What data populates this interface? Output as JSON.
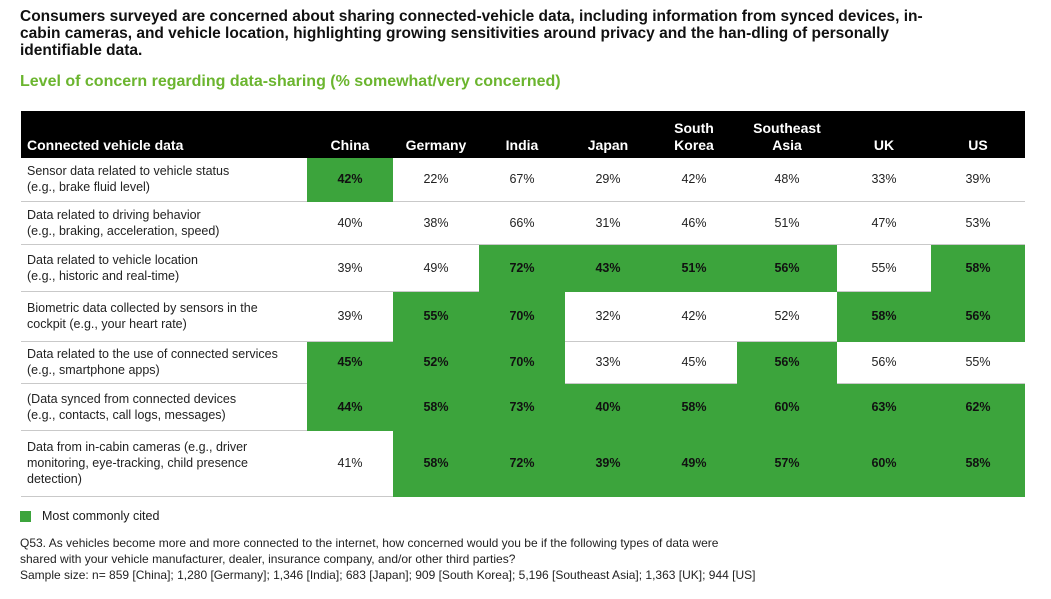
{
  "headline": "Consumers surveyed are concerned about sharing connected-vehicle data, including information from synced devices, in-cabin cameras, and vehicle location, highlighting growing sensitivities around privacy and the han-dling of personally identifiable data.",
  "chart_data": {
    "type": "table",
    "title": "Level of concern regarding data-sharing (% somewhat/very concerned)",
    "row_header": "Connected vehicle data",
    "columns": [
      "China",
      "Germany",
      "India",
      "Japan",
      "South Korea",
      "Southeast Asia",
      "UK",
      "US"
    ],
    "rows": [
      {
        "label_lines": [
          "Sensor data related to vehicle status",
          "(e.g., brake fluid level)"
        ],
        "values": [
          "42%",
          "22%",
          "67%",
          "29%",
          "42%",
          "48%",
          "33%",
          "39%"
        ],
        "most_cited": [
          true,
          false,
          false,
          false,
          false,
          false,
          false,
          false
        ]
      },
      {
        "label_lines": [
          "Data related to driving behavior",
          "(e.g., braking, acceleration, speed)"
        ],
        "values": [
          "40%",
          "38%",
          "66%",
          "31%",
          "46%",
          "51%",
          "47%",
          "53%"
        ],
        "most_cited": [
          false,
          false,
          false,
          false,
          false,
          false,
          false,
          false
        ]
      },
      {
        "label_lines": [
          "Data related to vehicle location",
          "(e.g., historic and real-time)"
        ],
        "values": [
          "39%",
          "49%",
          "72%",
          "43%",
          "51%",
          "56%",
          "55%",
          "58%"
        ],
        "most_cited": [
          false,
          false,
          true,
          true,
          true,
          true,
          false,
          true
        ]
      },
      {
        "label_lines": [
          "Biometric data collected by sensors in the",
          "cockpit (e.g., your heart rate)"
        ],
        "values": [
          "39%",
          "55%",
          "70%",
          "32%",
          "42%",
          "52%",
          "58%",
          "56%"
        ],
        "most_cited": [
          false,
          true,
          true,
          false,
          false,
          false,
          true,
          true
        ]
      },
      {
        "label_lines": [
          "Data related to the use of connected services",
          "(e.g., smartphone apps)"
        ],
        "values": [
          "45%",
          "52%",
          "70%",
          "33%",
          "45%",
          "56%",
          "56%",
          "55%"
        ],
        "most_cited": [
          true,
          true,
          true,
          false,
          false,
          true,
          false,
          false
        ]
      },
      {
        "label_lines": [
          "(Data synced from connected devices",
          "(e.g., contacts, call logs, messages)"
        ],
        "values": [
          "44%",
          "58%",
          "73%",
          "40%",
          "58%",
          "60%",
          "63%",
          "62%"
        ],
        "most_cited": [
          true,
          true,
          true,
          true,
          true,
          true,
          true,
          true
        ]
      },
      {
        "label_lines": [
          "Data from in-cabin cameras (e.g., driver",
          "monitoring, eye-tracking, child presence",
          "detection)"
        ],
        "values": [
          "41%",
          "58%",
          "72%",
          "39%",
          "49%",
          "57%",
          "60%",
          "58%"
        ],
        "most_cited": [
          false,
          true,
          true,
          true,
          true,
          true,
          true,
          true
        ]
      }
    ],
    "highlight_color": "#3ca43c",
    "legend": "Most commonly cited"
  },
  "footnote": {
    "question_lines": [
      "Q53. As vehicles become more and more connected to the internet, how concerned would you be if the following types of data were",
      "shared with your vehicle manufacturer, dealer, insurance company, and/or other third parties?"
    ],
    "sample": "Sample size: n= 859 [China]; 1,280 [Germany]; 1,346 [India]; 683 [Japan]; 909 [South Korea]; 5,196 [Southeast Asia]; 1,363 [UK]; 944 [US]"
  }
}
